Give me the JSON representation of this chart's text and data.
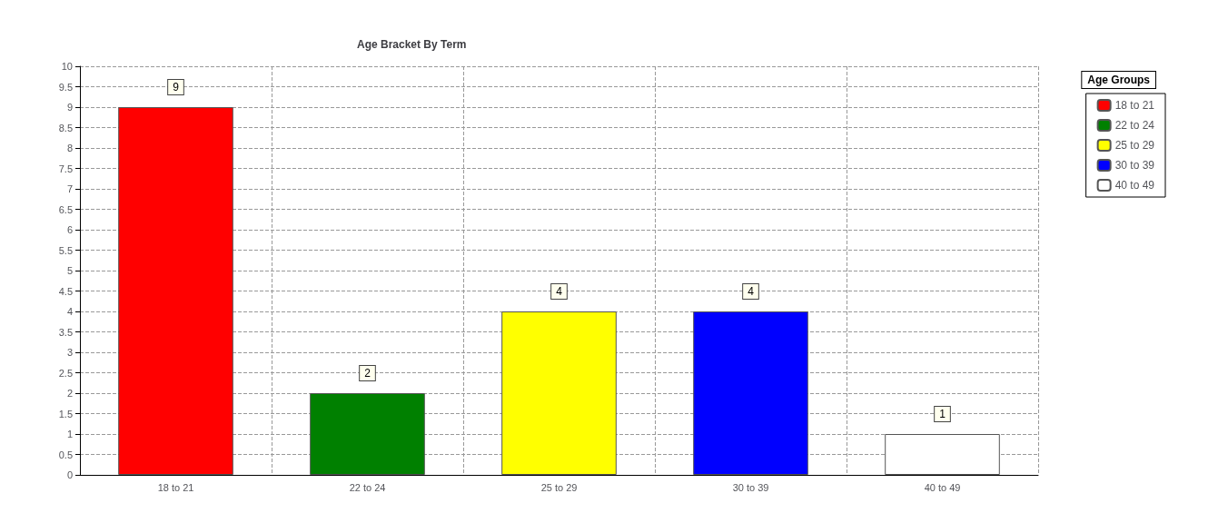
{
  "chart_data": {
    "type": "bar",
    "title": "Age Bracket By Term",
    "legend_title": "Age Groups",
    "categories": [
      "18 to 21",
      "22 to 24",
      "25 to 29",
      "30 to 39",
      "40 to 49"
    ],
    "series": [
      {
        "name": "18 to 21",
        "color": "#ff0000",
        "values": [
          9,
          null,
          null,
          null,
          null
        ]
      },
      {
        "name": "22 to 24",
        "color": "#008000",
        "values": [
          null,
          2,
          null,
          null,
          null
        ]
      },
      {
        "name": "25 to 29",
        "color": "#ffff00",
        "values": [
          null,
          null,
          4,
          null,
          null
        ]
      },
      {
        "name": "30 to 39",
        "color": "#0000ff",
        "values": [
          null,
          null,
          null,
          4,
          null
        ]
      },
      {
        "name": "40 to 49",
        "color": "#ffffff",
        "values": [
          null,
          null,
          null,
          null,
          1
        ]
      }
    ],
    "ylim": [
      0,
      10
    ],
    "yticks": [
      0,
      0.5,
      1,
      1.5,
      2,
      2.5,
      3,
      3.5,
      4,
      4.5,
      5,
      5.5,
      6,
      6.5,
      7,
      7.5,
      8,
      8.5,
      9,
      9.5,
      10
    ],
    "grid": true,
    "legend": "top right",
    "data_labels": true
  }
}
